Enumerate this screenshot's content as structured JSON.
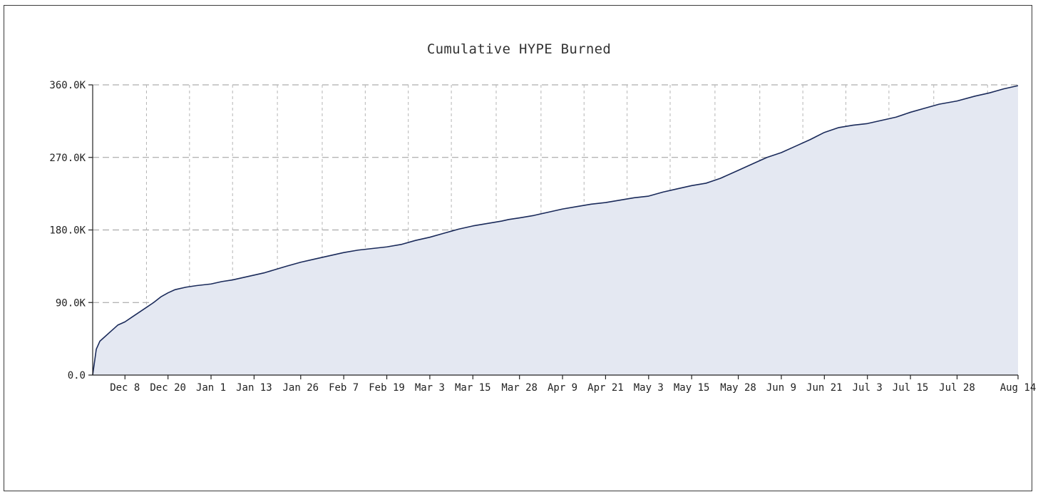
{
  "chart_data": {
    "type": "area",
    "title": "Cumulative HYPE Burned",
    "xlabel": "",
    "ylabel": "",
    "ylim": [
      0,
      360000
    ],
    "grid": true,
    "y_ticks": [
      {
        "value": 0,
        "label": "0.0"
      },
      {
        "value": 90000,
        "label": "90.0K"
      },
      {
        "value": 180000,
        "label": "180.0K"
      },
      {
        "value": 270000,
        "label": "270.0K"
      },
      {
        "value": 360000,
        "label": "360.0K"
      }
    ],
    "x_ticks": [
      "Dec 8",
      "Dec 20",
      "Jan 1",
      "Jan 13",
      "Jan 26",
      "Feb 7",
      "Feb 19",
      "Mar 3",
      "Mar 15",
      "Mar 28",
      "Apr 9",
      "Apr 21",
      "May 3",
      "May 15",
      "May 28",
      "Jun 9",
      "Jun 21",
      "Jul 3",
      "Jul 15",
      "Jul 28",
      "Aug 14"
    ],
    "series": [
      {
        "color": "#1a2a5a",
        "fill": "#e4e8f2",
        "points": [
          [
            "Nov 29",
            0
          ],
          [
            "Nov 30",
            32000
          ],
          [
            "Dec 1",
            42000
          ],
          [
            "Dec 2",
            46000
          ],
          [
            "Dec 4",
            54000
          ],
          [
            "Dec 6",
            62000
          ],
          [
            "Dec 8",
            66000
          ],
          [
            "Dec 10",
            72000
          ],
          [
            "Dec 12",
            78000
          ],
          [
            "Dec 14",
            84000
          ],
          [
            "Dec 16",
            90000
          ],
          [
            "Dec 18",
            97000
          ],
          [
            "Dec 20",
            102000
          ],
          [
            "Dec 22",
            106000
          ],
          [
            "Dec 25",
            109000
          ],
          [
            "Dec 28",
            111000
          ],
          [
            "Jan 1",
            113000
          ],
          [
            "Jan 4",
            116000
          ],
          [
            "Jan 7",
            118000
          ],
          [
            "Jan 10",
            121000
          ],
          [
            "Jan 13",
            124000
          ],
          [
            "Jan 16",
            127000
          ],
          [
            "Jan 19",
            131000
          ],
          [
            "Jan 22",
            135000
          ],
          [
            "Jan 26",
            140000
          ],
          [
            "Jan 30",
            144000
          ],
          [
            "Feb 3",
            148000
          ],
          [
            "Feb 7",
            152000
          ],
          [
            "Feb 11",
            155000
          ],
          [
            "Feb 15",
            157000
          ],
          [
            "Feb 19",
            159000
          ],
          [
            "Feb 23",
            162000
          ],
          [
            "Feb 27",
            167000
          ],
          [
            "Mar 3",
            171000
          ],
          [
            "Mar 7",
            176000
          ],
          [
            "Mar 11",
            181000
          ],
          [
            "Mar 15",
            185000
          ],
          [
            "Mar 19",
            188000
          ],
          [
            "Mar 23",
            191000
          ],
          [
            "Mar 25",
            193000
          ],
          [
            "Mar 28",
            195000
          ],
          [
            "Apr 1",
            198000
          ],
          [
            "Apr 5",
            202000
          ],
          [
            "Apr 9",
            206000
          ],
          [
            "Apr 13",
            209000
          ],
          [
            "Apr 17",
            212000
          ],
          [
            "Apr 21",
            214000
          ],
          [
            "Apr 25",
            217000
          ],
          [
            "Apr 29",
            220000
          ],
          [
            "May 3",
            222000
          ],
          [
            "May 7",
            227000
          ],
          [
            "May 11",
            231000
          ],
          [
            "May 15",
            235000
          ],
          [
            "May 19",
            238000
          ],
          [
            "May 23",
            244000
          ],
          [
            "May 28",
            254000
          ],
          [
            "Jun 1",
            262000
          ],
          [
            "Jun 5",
            270000
          ],
          [
            "Jun 9",
            276000
          ],
          [
            "Jun 13",
            284000
          ],
          [
            "Jun 17",
            292000
          ],
          [
            "Jun 21",
            301000
          ],
          [
            "Jun 25",
            307000
          ],
          [
            "Jun 29",
            310000
          ],
          [
            "Jul 3",
            312000
          ],
          [
            "Jul 7",
            316000
          ],
          [
            "Jul 11",
            320000
          ],
          [
            "Jul 15",
            326000
          ],
          [
            "Jul 19",
            331000
          ],
          [
            "Jul 23",
            336000
          ],
          [
            "Jul 28",
            340000
          ],
          [
            "Aug 2",
            346000
          ],
          [
            "Aug 6",
            350000
          ],
          [
            "Aug 10",
            355000
          ],
          [
            "Aug 14",
            359000
          ]
        ]
      }
    ]
  }
}
